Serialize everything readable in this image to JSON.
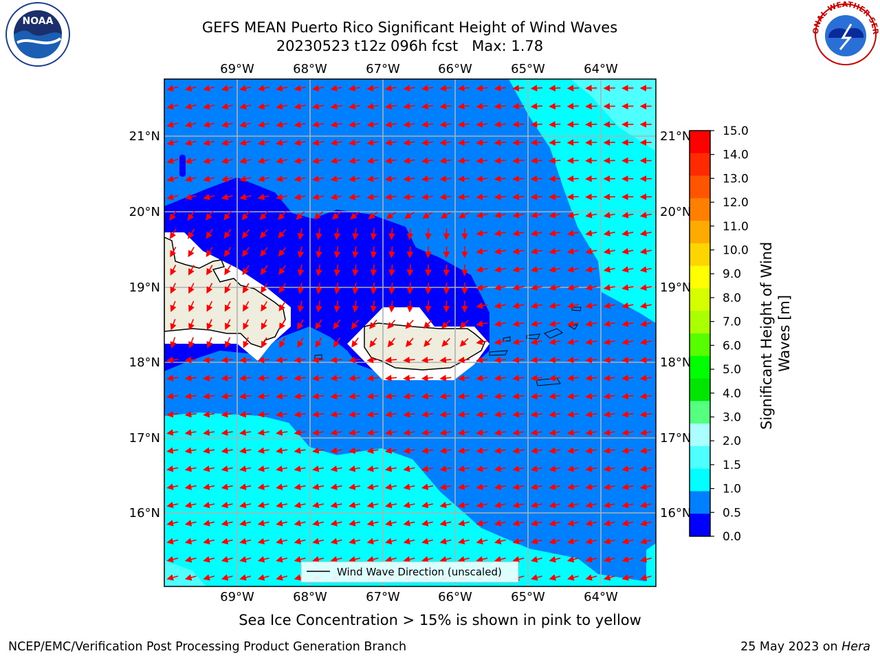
{
  "title": {
    "line1": "GEFS MEAN Puerto Rico Significant Height of Wind Waves",
    "line2": "20230523 t12z 096h fcst   Max: 1.78"
  },
  "map": {
    "lon_ticks": [
      "69°W",
      "68°W",
      "67°W",
      "66°W",
      "65°W",
      "64°W"
    ],
    "lat_ticks": [
      "21°N",
      "20°N",
      "19°N",
      "18°N",
      "17°N",
      "16°N"
    ],
    "legend_label": "Wind Wave Direction (unscaled)",
    "colors": {
      "ocean_low": "#0000ff",
      "ocean_mid": "#0080ff",
      "ocean_high": "#00ffff",
      "ocean_higher": "#4dffff",
      "land": "#efedde",
      "mask": "#ffffff",
      "arrow": "#ff0000",
      "grid": "#b0b0b0"
    }
  },
  "colorbar": {
    "label": "Significant Height of Wind\nWaves [m]",
    "ticks": [
      "15.0",
      "14.0",
      "13.0",
      "12.0",
      "11.0",
      "10.0",
      "9.0",
      "8.0",
      "7.0",
      "6.0",
      "5.0",
      "4.0",
      "3.0",
      "2.0",
      "1.5",
      "1.0",
      "0.5",
      "0.0"
    ],
    "colors": [
      "#ff0000",
      "#ff2a00",
      "#ff5500",
      "#ff8000",
      "#ffaa00",
      "#ffd500",
      "#ffff00",
      "#d5ff00",
      "#aaff00",
      "#55ff00",
      "#00ff00",
      "#00e600",
      "#55ff80",
      "#aaffff",
      "#4dffff",
      "#00ffff",
      "#0080ff",
      "#0000ff"
    ]
  },
  "logos": {
    "noaa": "NOAA",
    "noaa_ring": "NATIONAL OCEANIC AND ATMOSPHERIC ADMINISTRATION",
    "noaa_bottom": "U.S. DEPARTMENT OF COMMERCE",
    "nws_ring": "NATIONAL WEATHER SERVICE"
  },
  "subtitle": "Sea Ice Concentration > 15% is shown in pink to yellow",
  "footer": {
    "left": "NCEP/EMC/Verification Post Processing Product Generation Branch",
    "date": "25 May 2023 on ",
    "machine": "Hera"
  }
}
